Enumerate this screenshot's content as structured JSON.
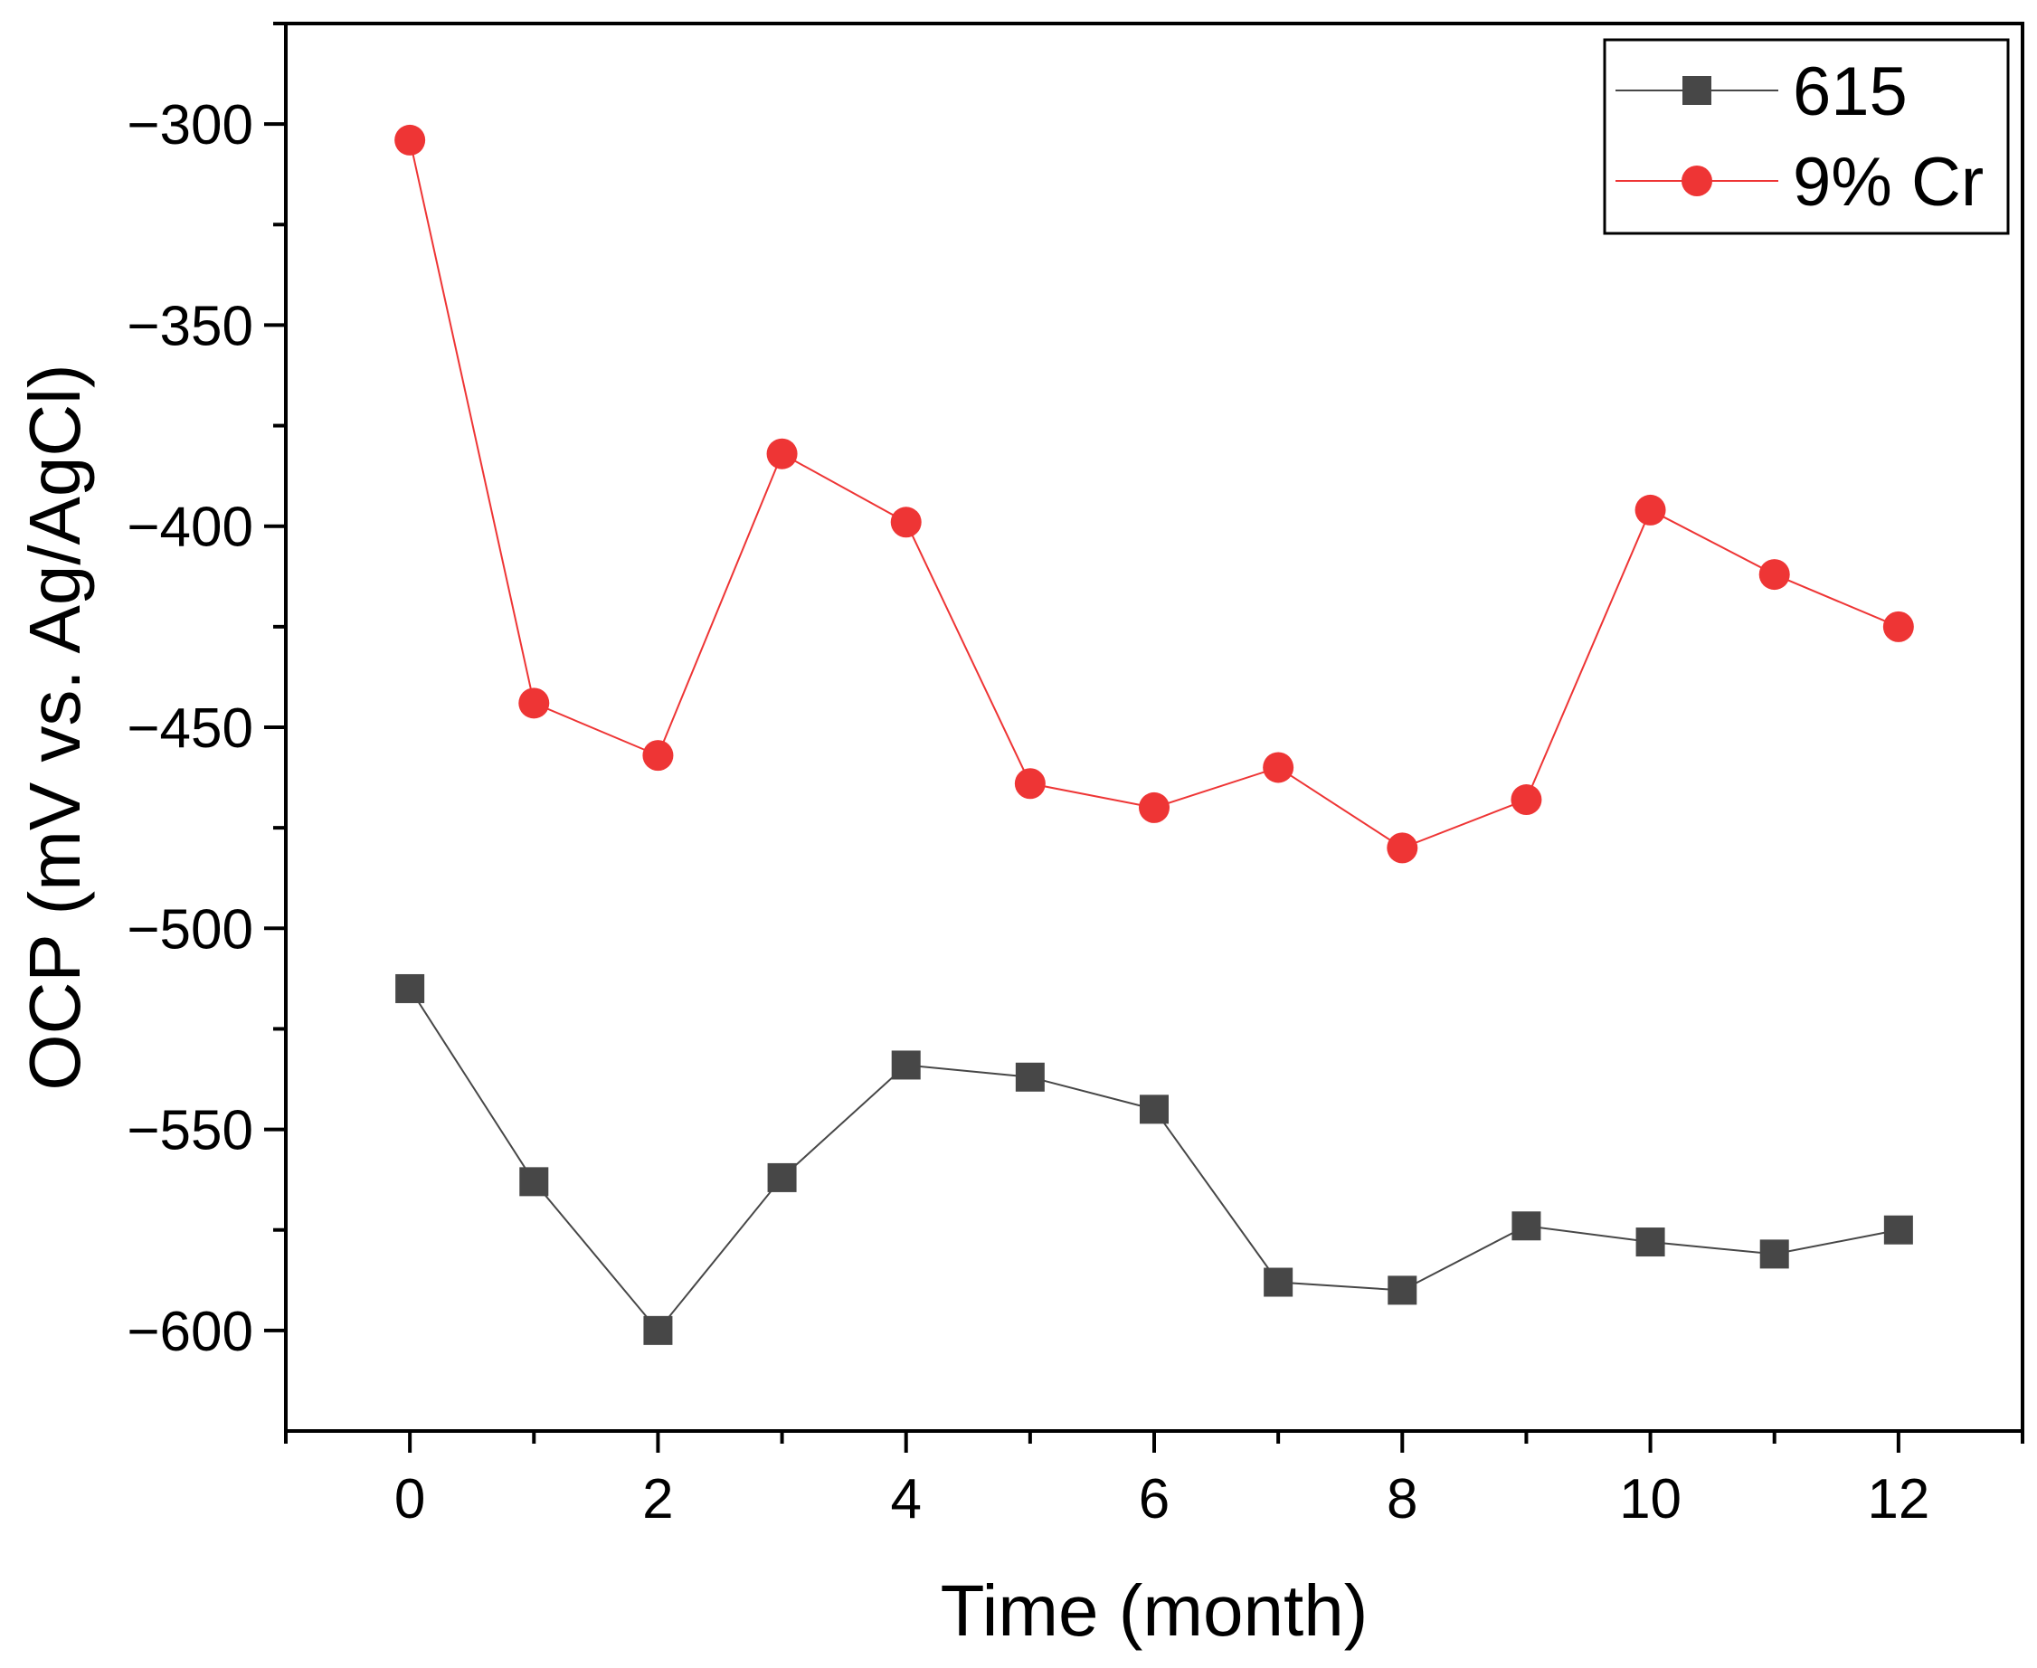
{
  "chart_data": {
    "type": "line",
    "title": "",
    "xlabel": "Time (month)",
    "ylabel": "OCP (mV vs. Ag/AgCl)",
    "xlim": [
      -1,
      13
    ],
    "ylim": [
      -625,
      -275
    ],
    "x_ticks": [
      0,
      2,
      4,
      6,
      8,
      10,
      12
    ],
    "x_tick_labels": [
      "0",
      "2",
      "4",
      "6",
      "8",
      "10",
      "12"
    ],
    "y_ticks": [
      -300,
      -350,
      -400,
      -450,
      -500,
      -550,
      -600
    ],
    "y_tick_labels": [
      "−300",
      "−350",
      "−400",
      "−450",
      "−500",
      "−550",
      "−600"
    ],
    "x": [
      0,
      1,
      2,
      3,
      4,
      5,
      6,
      7,
      8,
      9,
      10,
      11,
      12
    ],
    "series": [
      {
        "name": "615",
        "marker": "square",
        "color": "#474747",
        "line_color": "#474747",
        "values": [
          -515,
          -563,
          -600,
          -562,
          -534,
          -537,
          -545,
          -588,
          -590,
          -574,
          -578,
          -581,
          -575
        ]
      },
      {
        "name": "9% Cr",
        "marker": "circle",
        "color": "#ee3535",
        "line_color": "#ee3535",
        "values": [
          -304,
          -444,
          -457,
          -382,
          -399,
          -464,
          -470,
          -460,
          -480,
          -468,
          -396,
          -412,
          -425
        ]
      }
    ],
    "grid": false,
    "legend_position": "top-right",
    "minor_ticks": true
  }
}
